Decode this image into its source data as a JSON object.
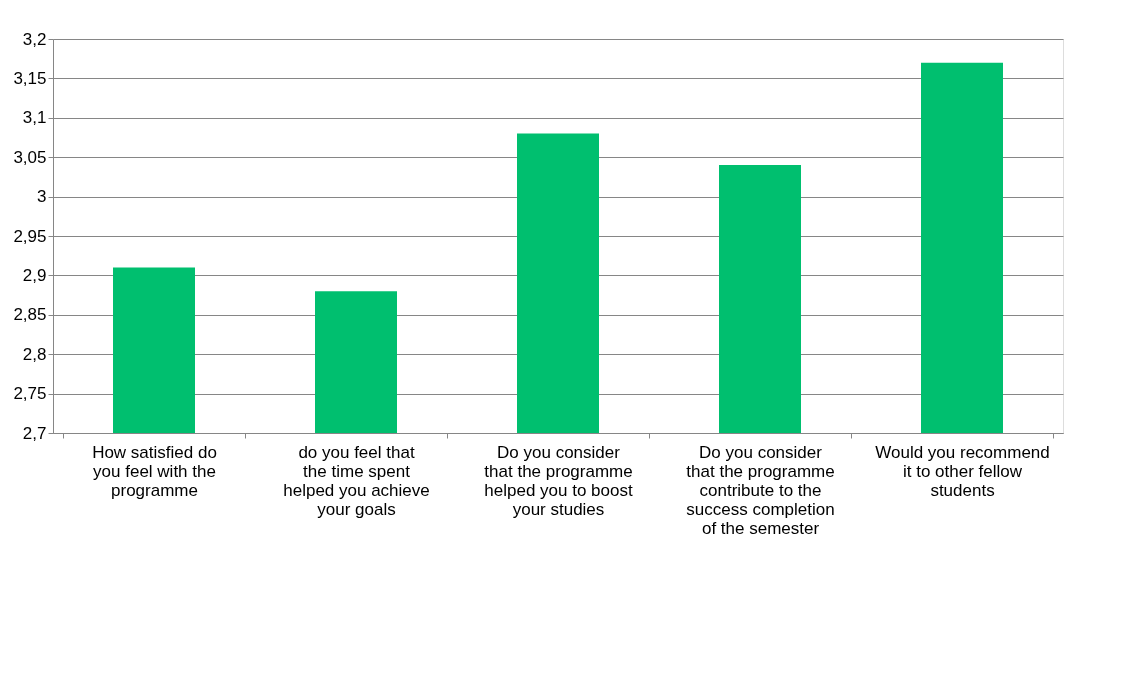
{
  "chart_data": {
    "type": "bar",
    "categories": [
      "How satisfied do you feel with the programme",
      "do you feel that the time spent helped you achieve your goals",
      "Do you consider that the programme helped you to boost your studies",
      "Do you consider that the programme contribute to the success completion of the semester",
      "Would you recommend it to other fellow students"
    ],
    "values": [
      2.91,
      2.88,
      3.08,
      3.04,
      3.17
    ],
    "color": "#00bf6f",
    "ylim": [
      2.7,
      3.2
    ],
    "yticks": [
      {
        "value": 2.7,
        "label": "2,7"
      },
      {
        "value": 2.75,
        "label": "2,75"
      },
      {
        "value": 2.8,
        "label": "2,8"
      },
      {
        "value": 2.85,
        "label": "2,85"
      },
      {
        "value": 2.9,
        "label": "2,9"
      },
      {
        "value": 2.95,
        "label": "2,95"
      },
      {
        "value": 3,
        "label": "3"
      },
      {
        "value": 3.05,
        "label": "3,05"
      },
      {
        "value": 3.1,
        "label": "3,1"
      },
      {
        "value": 3.15,
        "label": "3,15"
      },
      {
        "value": 3.2,
        "label": "3,2"
      }
    ],
    "grid": "y",
    "legend": false
  }
}
